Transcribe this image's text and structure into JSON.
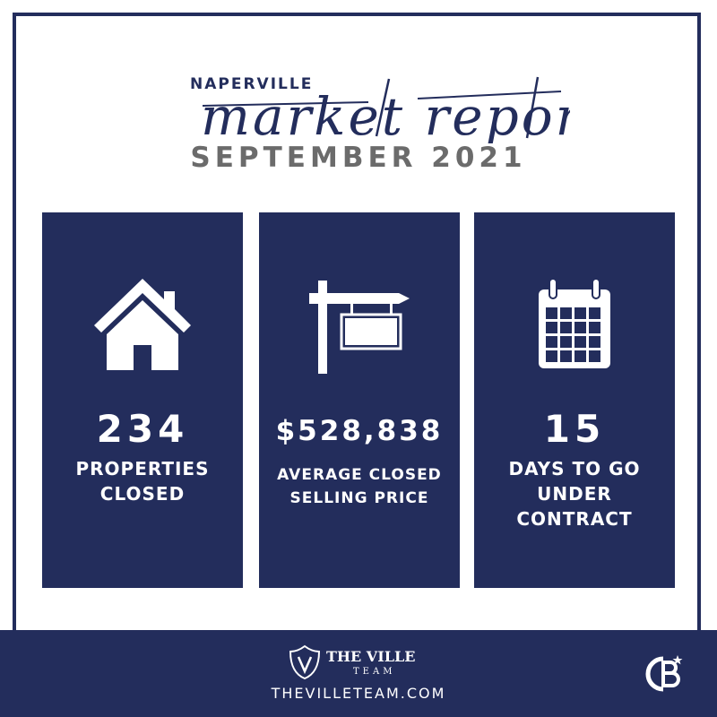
{
  "header": {
    "city": "NAPERVILLE",
    "script_title": "market report",
    "period": "SEPTEMBER 2021"
  },
  "stats": [
    {
      "icon": "house-icon",
      "value": "234",
      "label": "PROPERTIES CLOSED"
    },
    {
      "icon": "for-sale-sign-icon",
      "value": "$528,838",
      "label": "AVERAGE CLOSED SELLING PRICE"
    },
    {
      "icon": "calendar-icon",
      "value": "15",
      "label": "DAYS TO GO UNDER CONTRACT"
    }
  ],
  "footer": {
    "brand_name": "THE VILLE",
    "brand_sub": "TEAM",
    "website": "THEVILLETEAM.COM",
    "partner_logo": "coldwell-banker-logo"
  },
  "colors": {
    "navy": "#232d5c",
    "gray": "#6b6b6b",
    "white": "#ffffff"
  }
}
